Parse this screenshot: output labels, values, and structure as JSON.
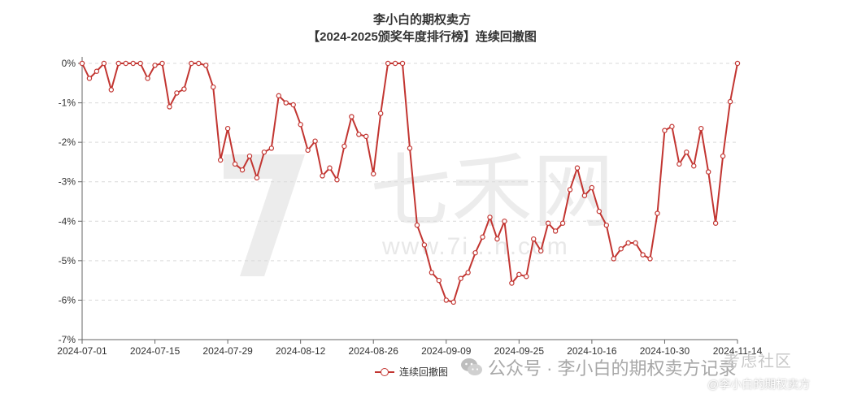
{
  "titles": {
    "line1": "李小白的期权卖方",
    "line2": "【2024-2025颁奖年度排行榜】连续回撤图"
  },
  "legend": {
    "label": "连续回撤图"
  },
  "watermarks": {
    "public_account": "公众号 · 李小白的期权卖方记录",
    "community": "考虑社区",
    "author": "@李小白的期权卖方",
    "qitian_url": "www.7i...n.com"
  },
  "colors": {
    "line": "#c23531",
    "grid": "#d9d9d9",
    "axis": "#666666"
  },
  "chart_data": {
    "type": "line",
    "title": "李小白的期权卖方【2024-2025颁奖年度排行榜】连续回撤图",
    "ylim": [
      -7,
      0
    ],
    "yticks": [
      "0%",
      "-1%",
      "-2%",
      "-3%",
      "-4%",
      "-5%",
      "-6%",
      "-7%"
    ],
    "xtick_labels": [
      "2024-07-01",
      "2024-07-15",
      "2024-07-29",
      "2024-08-12",
      "2024-08-26",
      "2024-09-09",
      "2024-09-25",
      "2024-10-16",
      "2024-10-30",
      "2024-11-14"
    ],
    "xtick_index": [
      0,
      10,
      20,
      30,
      40,
      50,
      60,
      70,
      80,
      90
    ],
    "grid": "horizontal-dashed",
    "legend_position": "bottom-center",
    "series": [
      {
        "name": "连续回撤图",
        "values": [
          0,
          -0.38,
          -0.2,
          0,
          -0.67,
          0,
          0,
          0,
          0,
          -0.38,
          -0.05,
          0,
          -1.1,
          -0.75,
          -0.65,
          0,
          0,
          -0.05,
          -0.6,
          -2.45,
          -1.65,
          -2.55,
          -2.7,
          -2.35,
          -2.9,
          -2.25,
          -2.15,
          -0.82,
          -1.0,
          -1.05,
          -1.55,
          -2.2,
          -1.97,
          -2.85,
          -2.65,
          -2.95,
          -2.1,
          -1.35,
          -1.8,
          -1.85,
          -2.8,
          -1.27,
          0,
          0,
          0,
          -2.15,
          -4.1,
          -4.6,
          -5.3,
          -5.5,
          -6.0,
          -6.05,
          -5.45,
          -5.3,
          -4.8,
          -4.4,
          -3.9,
          -4.45,
          -4.0,
          -5.57,
          -5.35,
          -5.4,
          -4.45,
          -4.75,
          -4.05,
          -4.25,
          -4.05,
          -3.2,
          -2.65,
          -3.35,
          -3.15,
          -3.75,
          -4.1,
          -4.95,
          -4.7,
          -4.55,
          -4.55,
          -4.85,
          -4.95,
          -3.8,
          -1.7,
          -1.6,
          -2.55,
          -2.25,
          -2.6,
          -1.65,
          -2.75,
          -4.05,
          -2.35,
          -0.97,
          0
        ]
      }
    ]
  }
}
